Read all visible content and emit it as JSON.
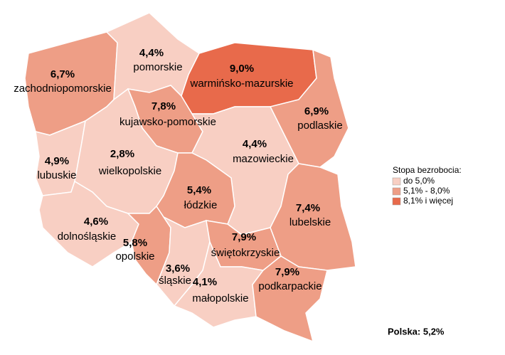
{
  "regions": [
    {
      "name": "zachodniopomorskie",
      "value": 6.7,
      "value_label": "6,7%"
    },
    {
      "name": "pomorskie",
      "value": 4.4,
      "value_label": "4,4%"
    },
    {
      "name": "warmińsko-mazurskie",
      "value": 9.0,
      "value_label": "9,0%"
    },
    {
      "name": "podlaskie",
      "value": 6.9,
      "value_label": "6,9%"
    },
    {
      "name": "kujawsko-pomorskie",
      "value": 7.8,
      "value_label": "7,8%"
    },
    {
      "name": "lubuskie",
      "value": 4.9,
      "value_label": "4,9%"
    },
    {
      "name": "wielkopolskie",
      "value": 2.8,
      "value_label": "2,8%"
    },
    {
      "name": "mazowieckie",
      "value": 4.4,
      "value_label": "4,4%"
    },
    {
      "name": "łódzkie",
      "value": 5.4,
      "value_label": "5,4%"
    },
    {
      "name": "lubelskie",
      "value": 7.4,
      "value_label": "7,4%"
    },
    {
      "name": "dolnośląskie",
      "value": 4.6,
      "value_label": "4,6%"
    },
    {
      "name": "opolskie",
      "value": 5.8,
      "value_label": "5,8%"
    },
    {
      "name": "śląskie",
      "value": 3.6,
      "value_label": "3,6%"
    },
    {
      "name": "świętokrzyskie",
      "value": 7.9,
      "value_label": "7,9%"
    },
    {
      "name": "małopolskie",
      "value": 4.1,
      "value_label": "4,1%"
    },
    {
      "name": "podkarpackie",
      "value": 7.9,
      "value_label": "7,9%"
    }
  ],
  "legend": {
    "title": "Stopa bezrobocia:",
    "items": [
      {
        "label": "do 5,0%",
        "color": "#f8cfc3",
        "range": [
          null,
          5.0
        ]
      },
      {
        "label": "5,1% - 8,0%",
        "color": "#ee9e86",
        "range": [
          5.1,
          8.0
        ]
      },
      {
        "label": "8,1% i więcej",
        "color": "#e86a4b",
        "range": [
          8.1,
          null
        ]
      }
    ]
  },
  "footer": "Polska: 5,2%"
}
